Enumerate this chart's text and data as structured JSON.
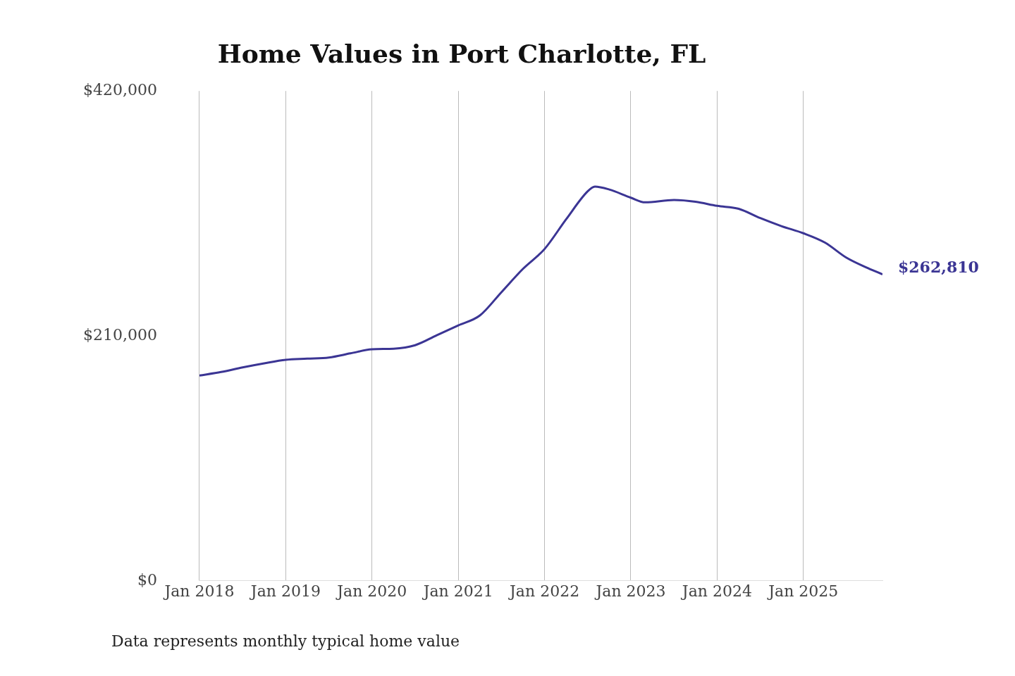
{
  "chart_data": {
    "type": "line",
    "title": "Home Values in Port Charlotte, FL",
    "annotations": [
      "Data represents monthly typical home value"
    ],
    "xticks": [
      {
        "value": "2018-01",
        "label": "Jan 2018"
      },
      {
        "value": "2019-01",
        "label": "Jan 2019"
      },
      {
        "value": "2020-01",
        "label": "Jan 2020"
      },
      {
        "value": "2021-01",
        "label": "Jan 2021"
      },
      {
        "value": "2022-01",
        "label": "Jan 2022"
      },
      {
        "value": "2023-01",
        "label": "Jan 2023"
      },
      {
        "value": "2024-01",
        "label": "Jan 2024"
      },
      {
        "value": "2025-01",
        "label": "Jan 2025"
      }
    ],
    "xlim": [
      "2018-01",
      "2025-12"
    ],
    "ylim": [
      0,
      420000
    ],
    "yticks": [
      {
        "value": 0,
        "label": "$0"
      },
      {
        "value": 210000,
        "label": "$210,000"
      },
      {
        "value": 420000,
        "label": "$420,000"
      }
    ],
    "grid": "x",
    "legend": false,
    "marker": "none",
    "line_style": "solid",
    "x": [
      "2018-01",
      "2018-04",
      "2018-07",
      "2018-10",
      "2019-01",
      "2019-04",
      "2019-07",
      "2019-10",
      "2020-01",
      "2020-04",
      "2020-07",
      "2020-10",
      "2021-01",
      "2021-04",
      "2021-07",
      "2021-10",
      "2022-01",
      "2022-04",
      "2022-07",
      "2022-08",
      "2022-10",
      "2023-01",
      "2023-03",
      "2023-07",
      "2023-10",
      "2024-01",
      "2024-04",
      "2024-07",
      "2024-10",
      "2025-01",
      "2025-04",
      "2025-07",
      "2025-10",
      "2025-12"
    ],
    "series": [
      {
        "color": "#3b3594",
        "values": [
          176000,
          179000,
          183000,
          186500,
          189500,
          190500,
          191500,
          195000,
          198500,
          199000,
          202000,
          210500,
          219000,
          227500,
          247500,
          267500,
          284500,
          310000,
          334000,
          338000,
          335500,
          328500,
          324500,
          326500,
          325000,
          321500,
          319000,
          311000,
          304000,
          298000,
          290000,
          277000,
          268000,
          262810
        ],
        "value_labels": [
          null,
          null,
          null,
          null,
          null,
          null,
          null,
          null,
          null,
          null,
          null,
          null,
          null,
          null,
          null,
          null,
          null,
          null,
          null,
          null,
          null,
          null,
          null,
          null,
          null,
          null,
          null,
          null,
          null,
          null,
          null,
          null,
          null,
          "$262,810"
        ]
      }
    ]
  }
}
